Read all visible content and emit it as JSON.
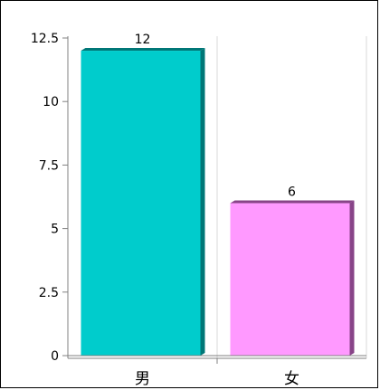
{
  "chart_data": {
    "type": "bar",
    "categories": [
      "男",
      "女"
    ],
    "values": [
      12,
      6
    ],
    "data_labels": [
      "12",
      "6"
    ],
    "title": "",
    "xlabel": "",
    "ylabel": "",
    "ylim": [
      0,
      12.5
    ],
    "yticks": [
      0,
      2.5,
      5,
      7.5,
      10,
      12.5
    ],
    "ytick_labels": [
      "0",
      "2.5",
      "5",
      "7.5",
      "10",
      "12.5"
    ],
    "grid": "vertical dividers only",
    "legend": "none",
    "colors": {
      "bar_fills": [
        "#00cccc",
        "#ff99ff"
      ],
      "bar_side_shades": [
        "#007777",
        "#884488"
      ],
      "axis": "#808080",
      "grid": "#d8d8d8"
    }
  }
}
